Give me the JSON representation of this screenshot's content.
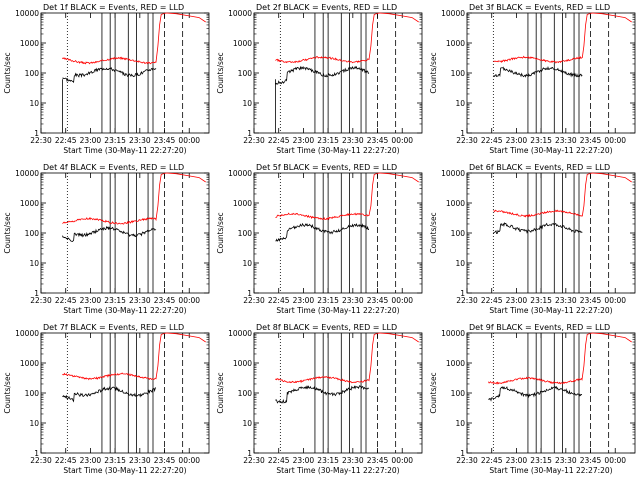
{
  "chart_data": {
    "type": "line",
    "x_ticks": [
      "22:30",
      "22:45",
      "23:00",
      "23:15",
      "23:30",
      "23:45",
      "00:00"
    ],
    "y_ticks": [
      "1",
      "10",
      "100",
      "1000",
      "10000"
    ],
    "y_scale": "log",
    "ylim": [
      1,
      10000
    ],
    "xlabel": "Start Time (30-May-11 22:27:20)",
    "ylabel": "Counts/sec",
    "series_names": [
      "Events",
      "LLD"
    ],
    "series_colors": {
      "Events": "#000000",
      "LLD": "#ff0000"
    },
    "legend_text": "BLACK = Events, RED = LLD",
    "panels": [
      {
        "title": "Det 1f BLACK = Events, RED = LLD",
        "events_level": 110,
        "lld_level": 260,
        "has_events_gap": true
      },
      {
        "title": "Det 2f BLACK = Events, RED = LLD",
        "events_level": 110,
        "lld_level": 280,
        "has_events_gap": true
      },
      {
        "title": "Det 3f BLACK = Events, RED = LLD",
        "events_level": 110,
        "lld_level": 280,
        "has_events_gap": false
      },
      {
        "title": "Det 4f BLACK = Events, RED = LLD",
        "events_level": 110,
        "lld_level": 250,
        "has_events_gap": false
      },
      {
        "title": "Det 5f BLACK = Events, RED = LLD",
        "events_level": 140,
        "lld_level": 360,
        "has_events_gap": false
      },
      {
        "title": "Det 6f BLACK = Events, RED = LLD",
        "events_level": 150,
        "lld_level": 450,
        "has_events_gap": false
      },
      {
        "title": "Det 7f BLACK = Events, RED = LLD",
        "events_level": 110,
        "lld_level": 360,
        "has_events_gap": false
      },
      {
        "title": "Det 8f BLACK = Events, RED = LLD",
        "events_level": 120,
        "lld_level": 280,
        "has_events_gap": false
      },
      {
        "title": "Det 9f BLACK = Events, RED = LLD",
        "events_level": 110,
        "lld_level": 260,
        "has_events_gap": false
      }
    ]
  }
}
